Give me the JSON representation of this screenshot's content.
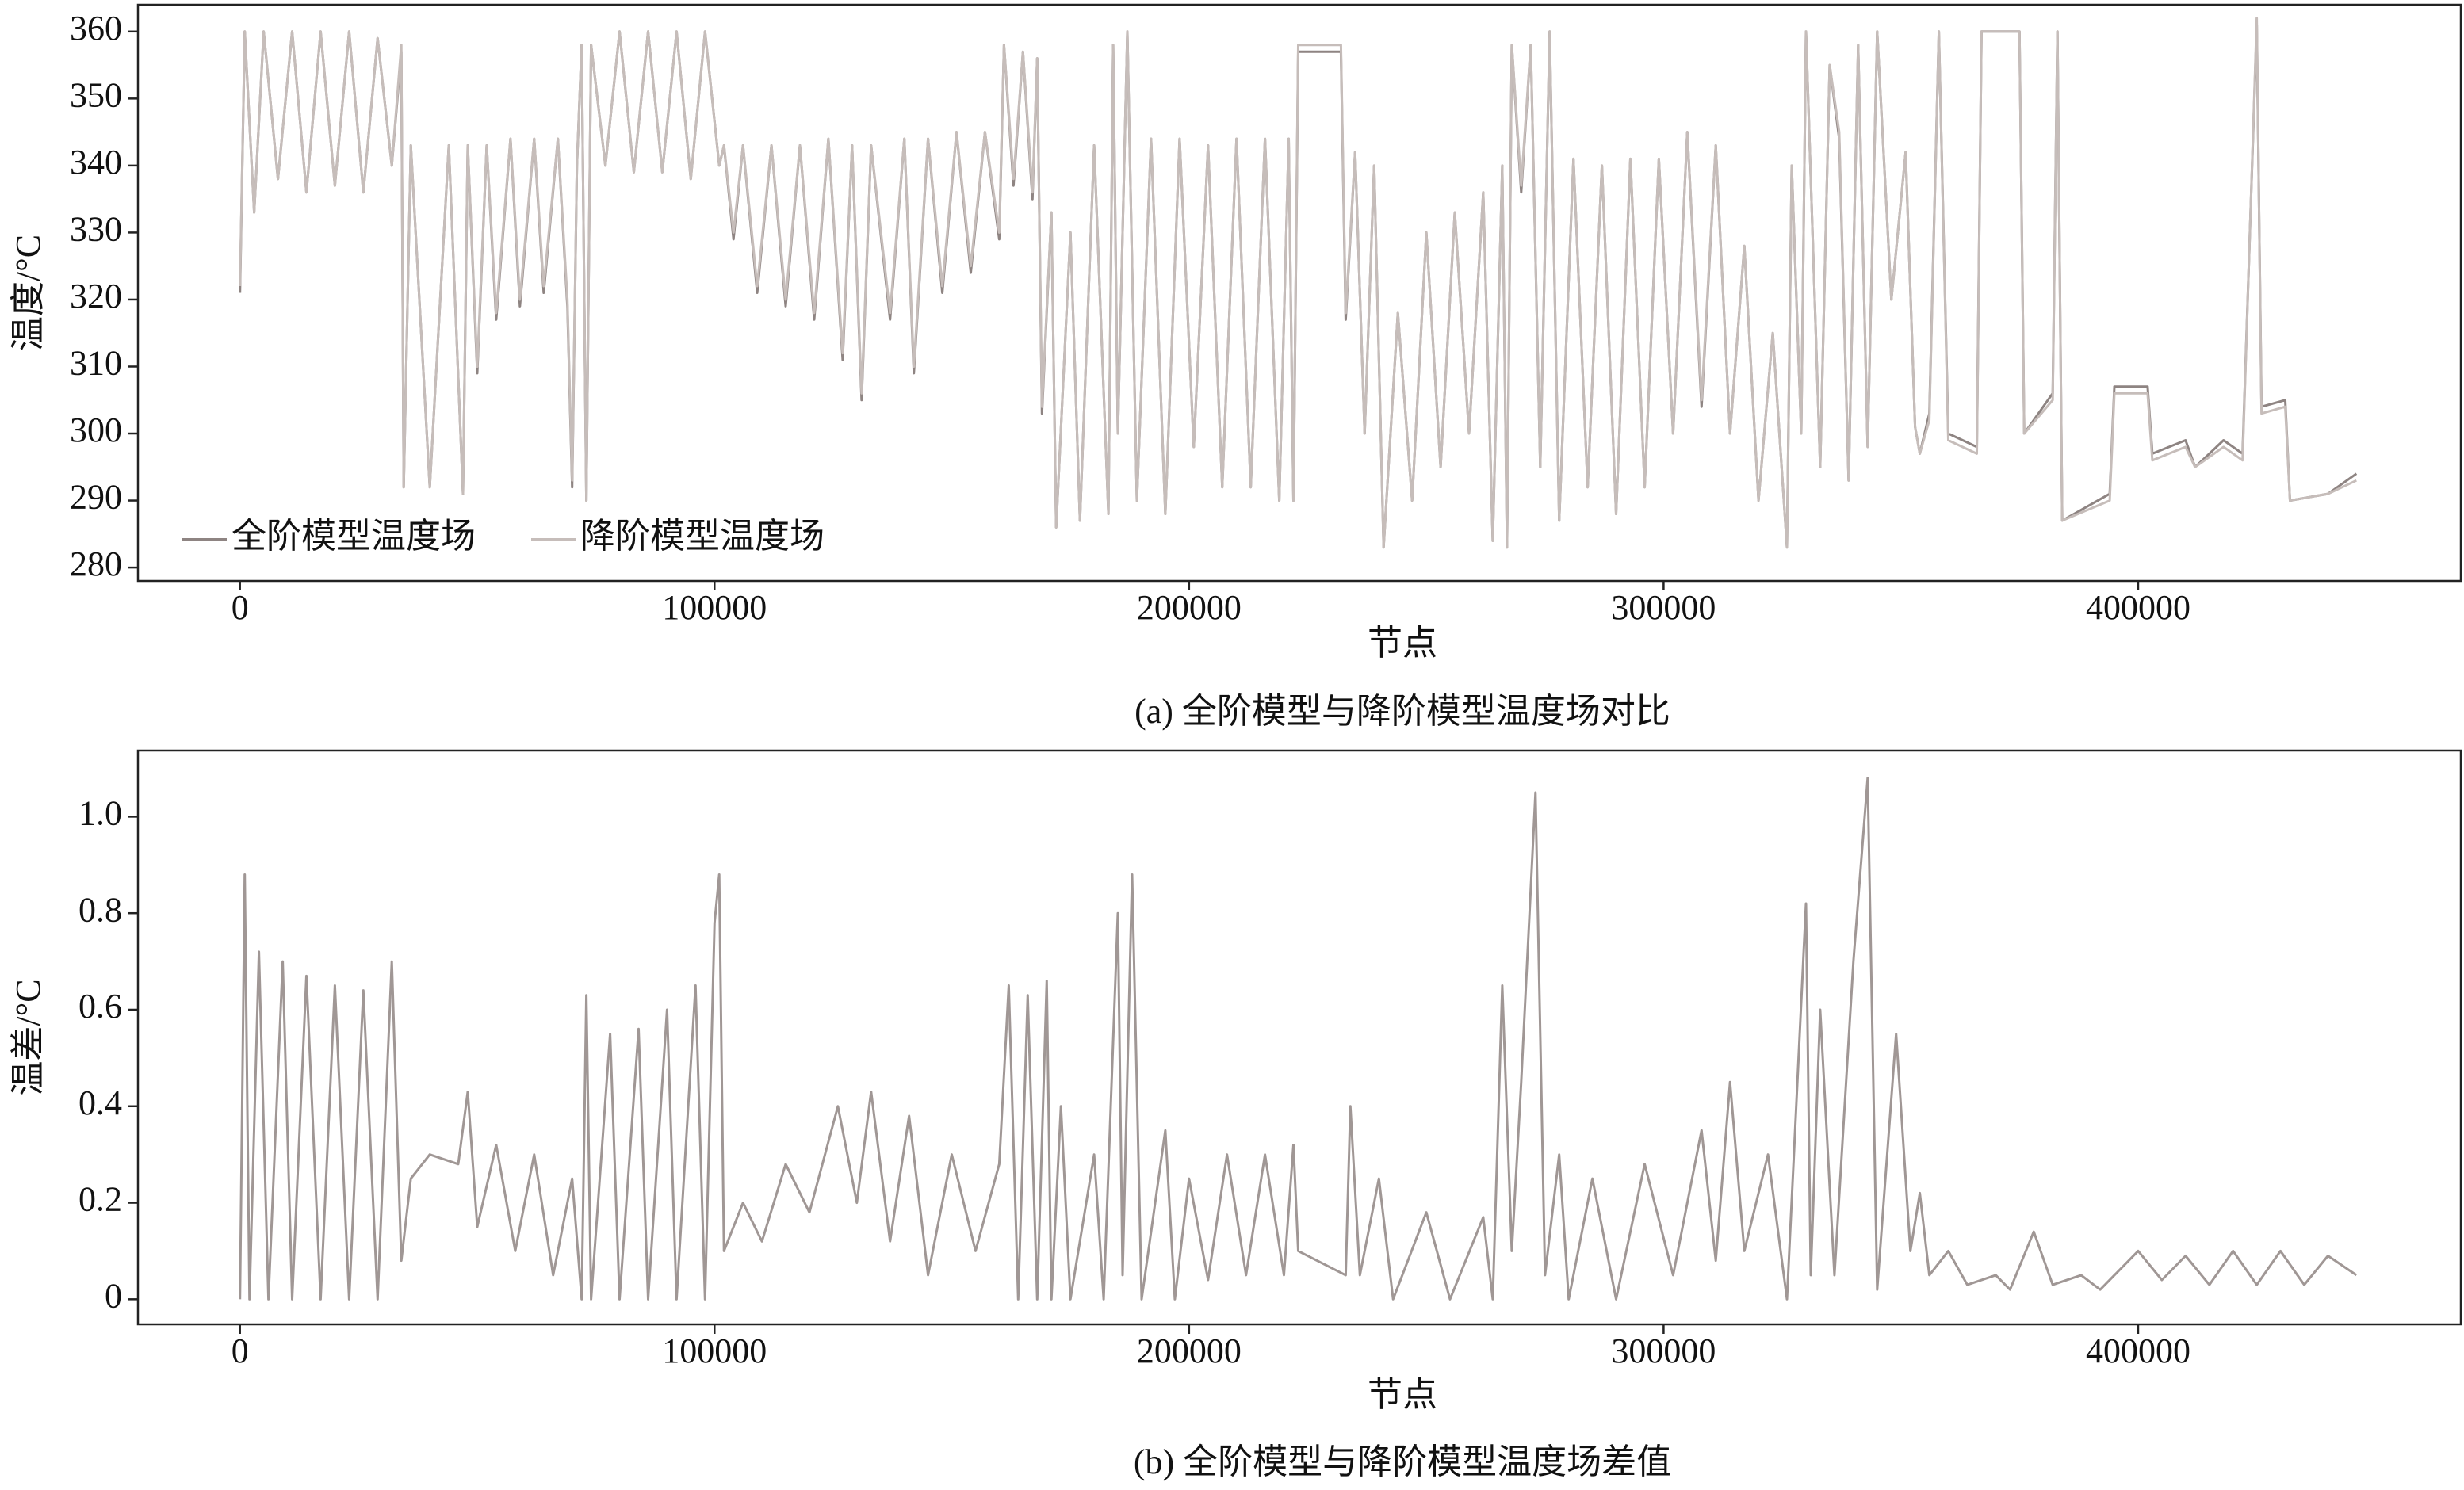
{
  "chart_data": [
    {
      "type": "line",
      "xlabel": "节点",
      "ylabel": "温度/°C",
      "caption": "(a) 全阶模型与降阶模型温度场对比",
      "xlim": [
        -21500,
        468000
      ],
      "ylim": [
        278,
        364
      ],
      "xticks": [
        0,
        100000,
        200000,
        300000,
        400000
      ],
      "yticks": [
        280,
        290,
        300,
        310,
        320,
        330,
        340,
        350,
        360
      ],
      "legend": "lower left",
      "x": [
        0,
        1000,
        3000,
        5000,
        8000,
        11000,
        14000,
        17000,
        20000,
        23000,
        26000,
        29000,
        32000,
        34000,
        34500,
        36000,
        40000,
        44000,
        47000,
        48000,
        50000,
        52000,
        54000,
        57000,
        59000,
        62000,
        64000,
        67000,
        69000,
        70000,
        71000,
        72000,
        73000,
        74000,
        77000,
        80000,
        83000,
        86000,
        89000,
        92000,
        95000,
        98000,
        101000,
        102000,
        104000,
        106000,
        109000,
        112000,
        115000,
        118000,
        121000,
        124000,
        127000,
        129000,
        131000,
        133000,
        137000,
        140000,
        142000,
        145000,
        148000,
        151000,
        154000,
        157000,
        160000,
        161000,
        163000,
        165000,
        167000,
        168000,
        169000,
        171000,
        172000,
        175000,
        177000,
        180000,
        183000,
        184000,
        185000,
        187000,
        189000,
        192000,
        195000,
        198000,
        201000,
        204000,
        207000,
        210000,
        213000,
        216000,
        219000,
        221000,
        222000,
        223000,
        232000,
        233000,
        235000,
        237000,
        239000,
        241000,
        244000,
        247000,
        250000,
        253000,
        256000,
        259000,
        262000,
        264000,
        266000,
        267000,
        268000,
        270000,
        272000,
        274000,
        276000,
        278000,
        281000,
        284000,
        287000,
        290000,
        293000,
        296000,
        299000,
        302000,
        305000,
        308000,
        311000,
        314000,
        317000,
        320000,
        323000,
        326000,
        327000,
        329000,
        330000,
        333000,
        335000,
        337000,
        339000,
        341000,
        343000,
        345000,
        348000,
        351000,
        353000,
        354000,
        356000,
        358000,
        360000,
        366000,
        367000,
        375000,
        376000,
        382000,
        383000,
        384000,
        394000,
        395000,
        402000,
        403000,
        410000,
        412000,
        418000,
        422000,
        425000,
        426000,
        431000,
        432000,
        440000,
        446000
      ],
      "series": [
        {
          "name": "全阶模型温度场",
          "color": "#8e8482",
          "values": [
            321,
            360,
            333,
            360,
            338,
            360,
            336,
            360,
            337,
            360,
            336,
            359,
            340,
            357,
            292,
            343,
            292,
            343,
            291,
            343,
            309,
            343,
            317,
            344,
            319,
            344,
            321,
            344,
            319,
            292,
            340,
            358,
            290,
            358,
            340,
            360,
            339,
            360,
            339,
            360,
            338,
            360,
            340,
            343,
            329,
            343,
            321,
            343,
            319,
            343,
            317,
            344,
            311,
            343,
            305,
            343,
            317,
            344,
            309,
            344,
            321,
            345,
            324,
            345,
            329,
            358,
            337,
            357,
            335,
            356,
            303,
            333,
            286,
            330,
            287,
            343,
            288,
            358,
            300,
            360,
            290,
            344,
            288,
            344,
            298,
            343,
            292,
            344,
            292,
            344,
            290,
            344,
            290,
            357,
            357,
            317,
            342,
            300,
            340,
            283,
            318,
            290,
            330,
            295,
            333,
            300,
            336,
            284,
            340,
            283,
            358,
            336,
            358,
            295,
            360,
            287,
            341,
            292,
            340,
            288,
            341,
            292,
            341,
            300,
            345,
            304,
            343,
            300,
            328,
            290,
            315,
            283,
            340,
            300,
            360,
            295,
            355,
            344,
            293,
            358,
            298,
            360,
            320,
            342,
            301,
            297,
            303,
            360,
            300,
            298,
            360,
            360,
            300,
            306,
            360,
            287,
            291,
            307,
            307,
            297,
            299,
            295,
            299,
            297,
            361,
            304,
            305,
            290,
            291,
            294
          ]
        },
        {
          "name": "降阶模型温度场",
          "color": "#c6bdba",
          "values": [
            322,
            360,
            333,
            360,
            338,
            360,
            336,
            360,
            337,
            360,
            336,
            359,
            340,
            358,
            292,
            343,
            292,
            343,
            291,
            343,
            310,
            343,
            318,
            344,
            320,
            344,
            322,
            344,
            320,
            293,
            340,
            358,
            290,
            358,
            340,
            360,
            339,
            360,
            339,
            360,
            338,
            360,
            340,
            343,
            330,
            343,
            322,
            343,
            320,
            343,
            318,
            344,
            312,
            343,
            306,
            343,
            318,
            344,
            310,
            344,
            322,
            345,
            325,
            345,
            330,
            358,
            338,
            357,
            336,
            356,
            304,
            333,
            286,
            330,
            287,
            343,
            288,
            358,
            300,
            360,
            290,
            344,
            288,
            344,
            298,
            343,
            292,
            344,
            292,
            344,
            290,
            344,
            290,
            358,
            358,
            318,
            342,
            300,
            340,
            283,
            318,
            290,
            330,
            295,
            333,
            300,
            336,
            284,
            340,
            283,
            358,
            337,
            358,
            295,
            360,
            287,
            341,
            292,
            340,
            288,
            341,
            292,
            341,
            300,
            345,
            305,
            343,
            300,
            328,
            290,
            315,
            283,
            340,
            300,
            360,
            295,
            355,
            345,
            293,
            358,
            298,
            360,
            320,
            342,
            301,
            297,
            302,
            360,
            299,
            297,
            360,
            360,
            300,
            305,
            360,
            287,
            290,
            306,
            306,
            296,
            298,
            295,
            298,
            296,
            362,
            303,
            304,
            290,
            291,
            293
          ]
        }
      ]
    },
    {
      "type": "line",
      "xlabel": "节点",
      "ylabel": "温差/°C",
      "caption": "(b) 全阶模型与降阶模型温度场差值",
      "xlim": [
        -21500,
        468000
      ],
      "ylim": [
        -0.052,
        1.137
      ],
      "xticks": [
        0,
        100000,
        200000,
        300000,
        400000
      ],
      "yticks": [
        0,
        0.2,
        0.4,
        0.6,
        0.8,
        {
          "value": 1,
          "label": "1.0"
        }
      ],
      "x": [
        0,
        1000,
        2000,
        4000,
        6000,
        9000,
        11000,
        14000,
        17000,
        20000,
        23000,
        26000,
        29000,
        32000,
        34000,
        36000,
        40000,
        46000,
        48000,
        50000,
        54000,
        58000,
        62000,
        66000,
        70000,
        72000,
        73000,
        74000,
        78000,
        80000,
        84000,
        86000,
        90000,
        92000,
        96000,
        98000,
        100000,
        101000,
        102000,
        106000,
        110000,
        115000,
        120000,
        126000,
        130000,
        133000,
        137000,
        141000,
        145000,
        150000,
        155000,
        160000,
        162000,
        164000,
        166000,
        168000,
        170000,
        171000,
        173000,
        175000,
        180000,
        182000,
        185000,
        186000,
        188000,
        190000,
        195000,
        197000,
        200000,
        204000,
        208000,
        212000,
        216000,
        220000,
        222000,
        223000,
        233000,
        234000,
        236000,
        240000,
        243000,
        250000,
        255000,
        262000,
        264000,
        266000,
        268000,
        270000,
        273000,
        275000,
        278000,
        280000,
        285000,
        290000,
        296000,
        302000,
        308000,
        311000,
        314000,
        317000,
        322000,
        326000,
        330000,
        331000,
        333000,
        336000,
        340000,
        343000,
        345000,
        349000,
        352000,
        354000,
        356000,
        360000,
        364000,
        370000,
        373000,
        378000,
        382000,
        388000,
        392000,
        400000,
        405000,
        410000,
        415000,
        420000,
        425000,
        430000,
        435000,
        440000,
        446000
      ],
      "series": [
        {
          "name": "温差",
          "color": "#a09795",
          "values": [
            0,
            0.88,
            0,
            0.72,
            0,
            0.7,
            0,
            0.67,
            0,
            0.65,
            0,
            0.64,
            0,
            0.7,
            0.08,
            0.25,
            0.3,
            0.28,
            0.43,
            0.15,
            0.32,
            0.1,
            0.3,
            0.05,
            0.25,
            0,
            0.63,
            0,
            0.55,
            0,
            0.56,
            0,
            0.6,
            0,
            0.65,
            0,
            0.78,
            0.88,
            0.1,
            0.2,
            0.12,
            0.28,
            0.18,
            0.4,
            0.2,
            0.43,
            0.12,
            0.38,
            0.05,
            0.3,
            0.1,
            0.28,
            0.65,
            0,
            0.63,
            0,
            0.66,
            0,
            0.4,
            0,
            0.3,
            0,
            0.8,
            0.05,
            0.88,
            0,
            0.35,
            0,
            0.25,
            0.04,
            0.3,
            0.05,
            0.3,
            0.05,
            0.32,
            0.1,
            0.05,
            0.4,
            0.05,
            0.25,
            0,
            0.18,
            0,
            0.17,
            0,
            0.65,
            0.1,
            0.45,
            1.05,
            0.05,
            0.3,
            0,
            0.25,
            0,
            0.28,
            0.05,
            0.35,
            0.08,
            0.45,
            0.1,
            0.3,
            0,
            0.82,
            0.05,
            0.6,
            0.05,
            0.7,
            1.08,
            0.02,
            0.55,
            0.1,
            0.22,
            0.05,
            0.1,
            0.03,
            0.05,
            0.02,
            0.14,
            0.03,
            0.05,
            0.02,
            0.1,
            0.04,
            0.09,
            0.03,
            0.1,
            0.03,
            0.1,
            0.03,
            0.09,
            0.05
          ]
        }
      ]
    }
  ]
}
